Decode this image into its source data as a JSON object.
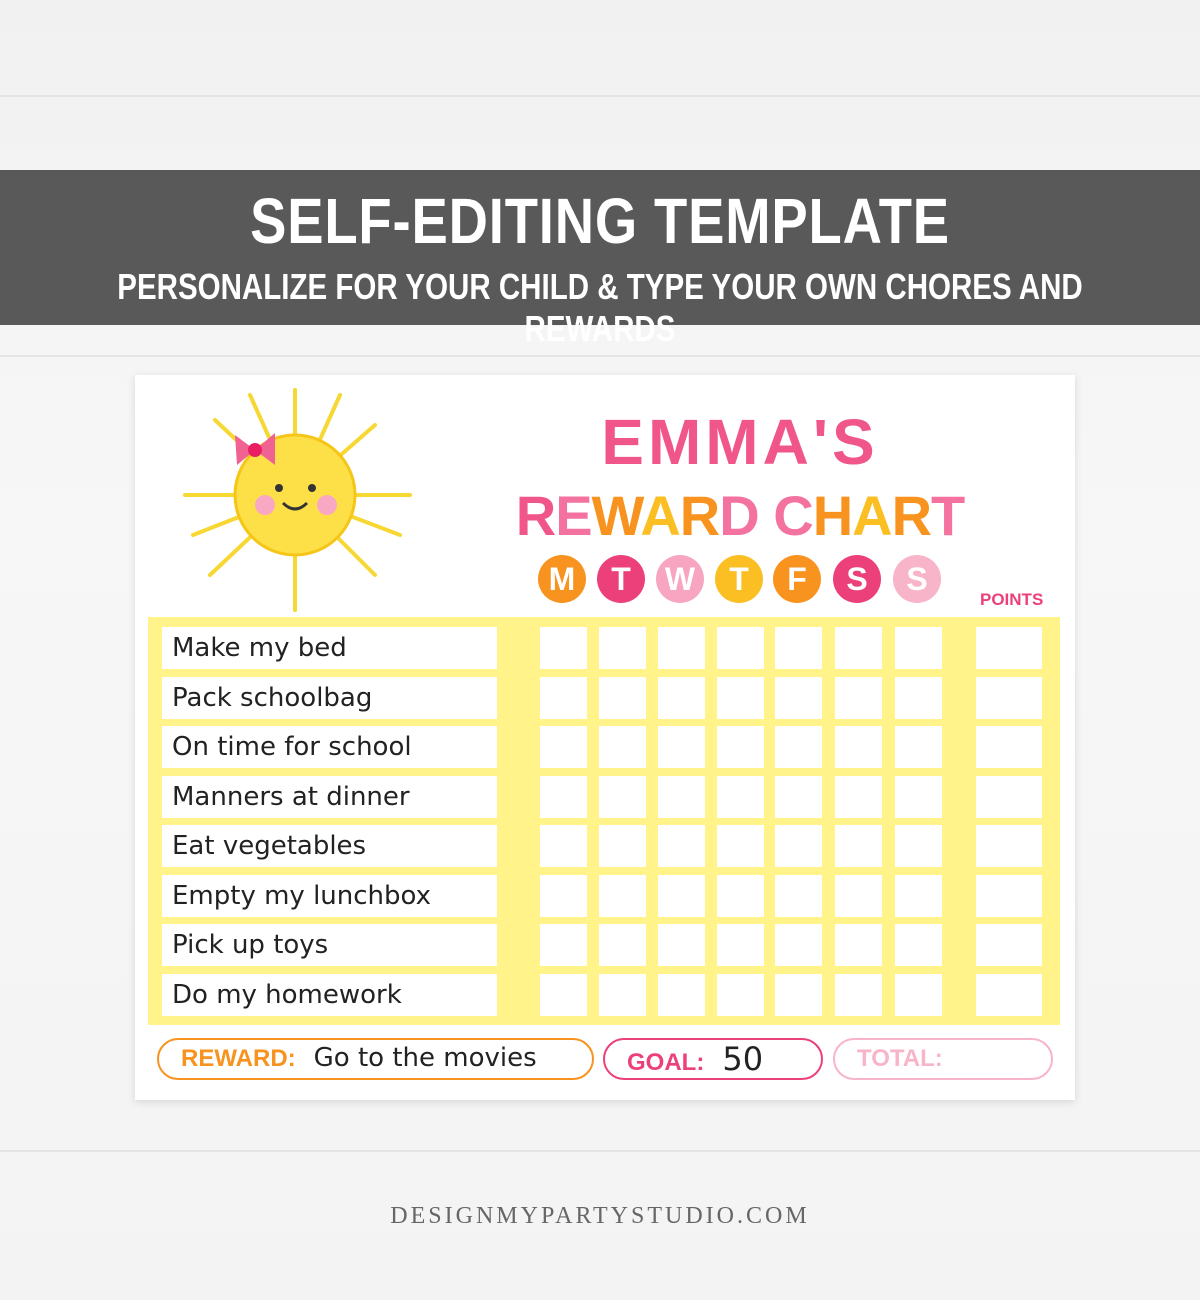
{
  "banner": {
    "title": "SELF-EDITING TEMPLATE",
    "subtitle": "PERSONALIZE FOR YOUR CHILD & TYPE YOUR OWN CHORES AND REWARDS"
  },
  "card": {
    "name": "EMMA'S",
    "title": "REWARD CHART",
    "days": [
      "M",
      "T",
      "W",
      "T",
      "F",
      "S",
      "S"
    ],
    "points_label": "POINTS",
    "chores": [
      "Make my bed",
      "Pack schoolbag",
      "On time for school",
      "Manners at dinner",
      "Eat vegetables",
      "Empty my lunchbox",
      "Pick up toys",
      "Do my homework"
    ],
    "reward": {
      "label": "REWARD:",
      "value": "Go to the movies"
    },
    "goal": {
      "label": "GOAL:",
      "value": 50
    },
    "total": {
      "label": "TOTAL:"
    }
  },
  "footer": "DESIGNMYPARTYSTUDIO.COM"
}
